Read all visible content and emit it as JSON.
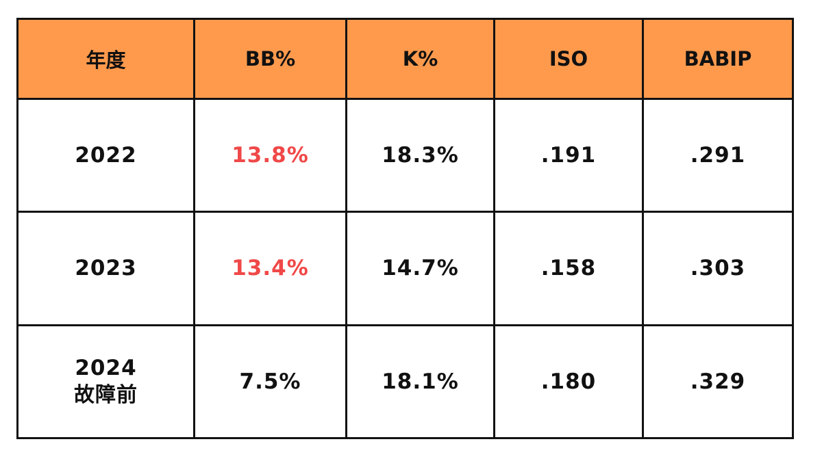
{
  "table": {
    "headers": [
      "年度",
      "BB%",
      "K%",
      "ISO",
      "BABIP"
    ],
    "highlight_color": "#f04848",
    "header_bg_color": "#ff9a4d",
    "rows": [
      {
        "year": "2022",
        "year_note": "",
        "bb": "13.8%",
        "k": "18.3%",
        "iso": ".191",
        "babip": ".291",
        "bb_highlight": true
      },
      {
        "year": "2023",
        "year_note": "",
        "bb": "13.4%",
        "k": "14.7%",
        "iso": ".158",
        "babip": ".303",
        "bb_highlight": true
      },
      {
        "year": "2024",
        "year_note": "故障前",
        "bb": "7.5%",
        "k": "18.1%",
        "iso": ".180",
        "babip": ".329",
        "bb_highlight": false
      }
    ]
  }
}
